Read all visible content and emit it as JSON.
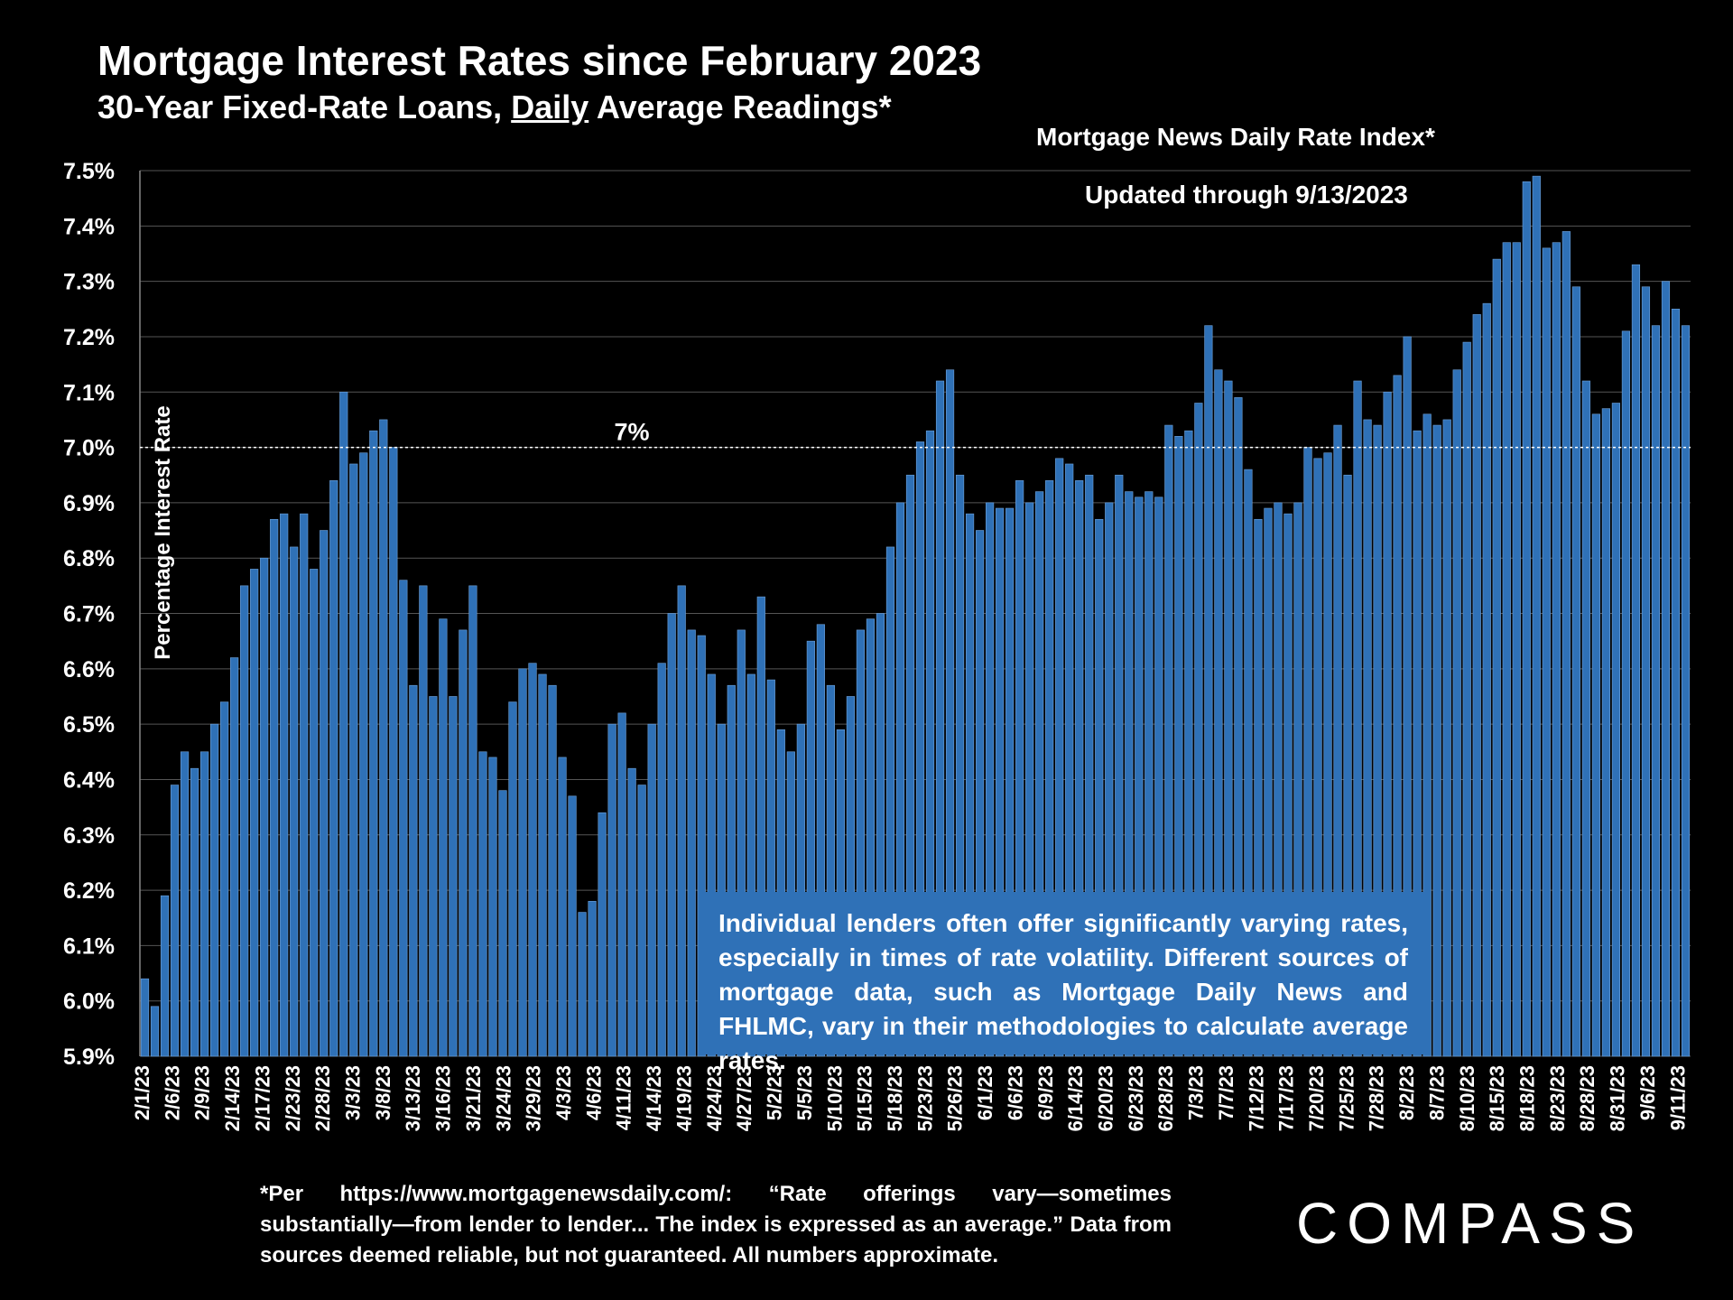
{
  "header": {
    "title": "Mortgage Interest Rates since February 2023",
    "subtitle_pre": "30-Year Fixed-Rate Loans, ",
    "subtitle_underlined": "Daily",
    "subtitle_post": " Average Readings*",
    "source": "Mortgage News Daily Rate Index*",
    "updated": "Updated through 9/13/2023"
  },
  "note": "Individual lenders often offer significantly varying rates, especially in times of rate volatility. Different sources of mortgage data, such as Mortgage Daily News and FHLMC, vary in their methodologies to calculate average rates.",
  "footnote": "*Per https://www.mortgagenewsdaily.com/: “Rate offerings vary—sometimes substantially—from lender to lender... The index is expressed as an average.” Data from sources deemed reliable, but not guaranteed. All numbers approximate.",
  "logo": "COMPASS",
  "colors": {
    "bar": "#2f71b7",
    "background": "#000000",
    "grid": "#555555"
  },
  "chart_data": {
    "type": "bar",
    "title": "Mortgage Interest Rates since February 2023",
    "ylabel": "Percentage Interest  Rate",
    "xlabel": "",
    "ylim": [
      5.9,
      7.5
    ],
    "yticks": [
      "5.9%",
      "6.0%",
      "6.1%",
      "6.2%",
      "6.3%",
      "6.4%",
      "6.5%",
      "6.6%",
      "6.7%",
      "6.8%",
      "6.9%",
      "7.0%",
      "7.1%",
      "7.2%",
      "7.3%",
      "7.4%",
      "7.5%"
    ],
    "xtick_labels": [
      "2/1/23",
      "2/6/23",
      "2/9/23",
      "2/14/23",
      "2/17/23",
      "2/23/23",
      "2/28/23",
      "3/3/23",
      "3/8/23",
      "3/13/23",
      "3/16/23",
      "3/21/23",
      "3/24/23",
      "3/29/23",
      "4/3/23",
      "4/6/23",
      "4/11/23",
      "4/14/23",
      "4/19/23",
      "4/24/23",
      "4/27/23",
      "5/2/23",
      "5/5/23",
      "5/10/23",
      "5/15/23",
      "5/18/23",
      "5/23/23",
      "5/26/23",
      "6/1/23",
      "6/6/23",
      "6/9/23",
      "6/14/23",
      "6/20/23",
      "6/23/23",
      "6/28/23",
      "7/3/23",
      "7/7/23",
      "7/12/23",
      "7/17/23",
      "7/20/23",
      "7/25/23",
      "7/28/23",
      "8/2/23",
      "8/7/23",
      "8/10/23",
      "8/15/23",
      "8/18/23",
      "8/23/23",
      "8/28/23",
      "8/31/23",
      "9/6/23",
      "9/11/23"
    ],
    "reference_line": {
      "value": 7.0,
      "label": "7%"
    },
    "values": [
      6.04,
      5.99,
      6.19,
      6.39,
      6.45,
      6.42,
      6.45,
      6.5,
      6.54,
      6.62,
      6.75,
      6.78,
      6.8,
      6.87,
      6.88,
      6.82,
      6.88,
      6.78,
      6.85,
      6.94,
      7.1,
      6.97,
      6.99,
      7.03,
      7.05,
      7.0,
      6.76,
      6.57,
      6.75,
      6.55,
      6.69,
      6.55,
      6.67,
      6.75,
      6.45,
      6.44,
      6.38,
      6.54,
      6.6,
      6.61,
      6.59,
      6.57,
      6.44,
      6.37,
      6.16,
      6.18,
      6.34,
      6.5,
      6.52,
      6.42,
      6.39,
      6.5,
      6.61,
      6.7,
      6.75,
      6.67,
      6.66,
      6.59,
      6.5,
      6.57,
      6.67,
      6.59,
      6.73,
      6.58,
      6.49,
      6.45,
      6.5,
      6.65,
      6.68,
      6.57,
      6.49,
      6.55,
      6.67,
      6.69,
      6.7,
      6.82,
      6.9,
      6.95,
      7.01,
      7.03,
      7.12,
      7.14,
      6.95,
      6.88,
      6.85,
      6.9,
      6.89,
      6.89,
      6.94,
      6.9,
      6.92,
      6.94,
      6.98,
      6.97,
      6.94,
      6.95,
      6.87,
      6.9,
      6.95,
      6.92,
      6.91,
      6.92,
      6.91,
      7.04,
      7.02,
      7.03,
      7.08,
      7.22,
      7.14,
      7.12,
      7.09,
      6.96,
      6.87,
      6.89,
      6.9,
      6.88,
      6.9,
      7.0,
      6.98,
      6.99,
      7.04,
      6.95,
      7.12,
      7.05,
      7.04,
      7.1,
      7.13,
      7.2,
      7.03,
      7.06,
      7.04,
      7.05,
      7.14,
      7.19,
      7.24,
      7.26,
      7.34,
      7.37,
      7.37,
      7.48,
      7.49,
      7.36,
      7.37,
      7.39,
      7.29,
      7.12,
      7.06,
      7.07,
      7.08,
      7.21,
      7.33,
      7.29,
      7.22,
      7.3,
      7.25,
      7.22
    ]
  }
}
